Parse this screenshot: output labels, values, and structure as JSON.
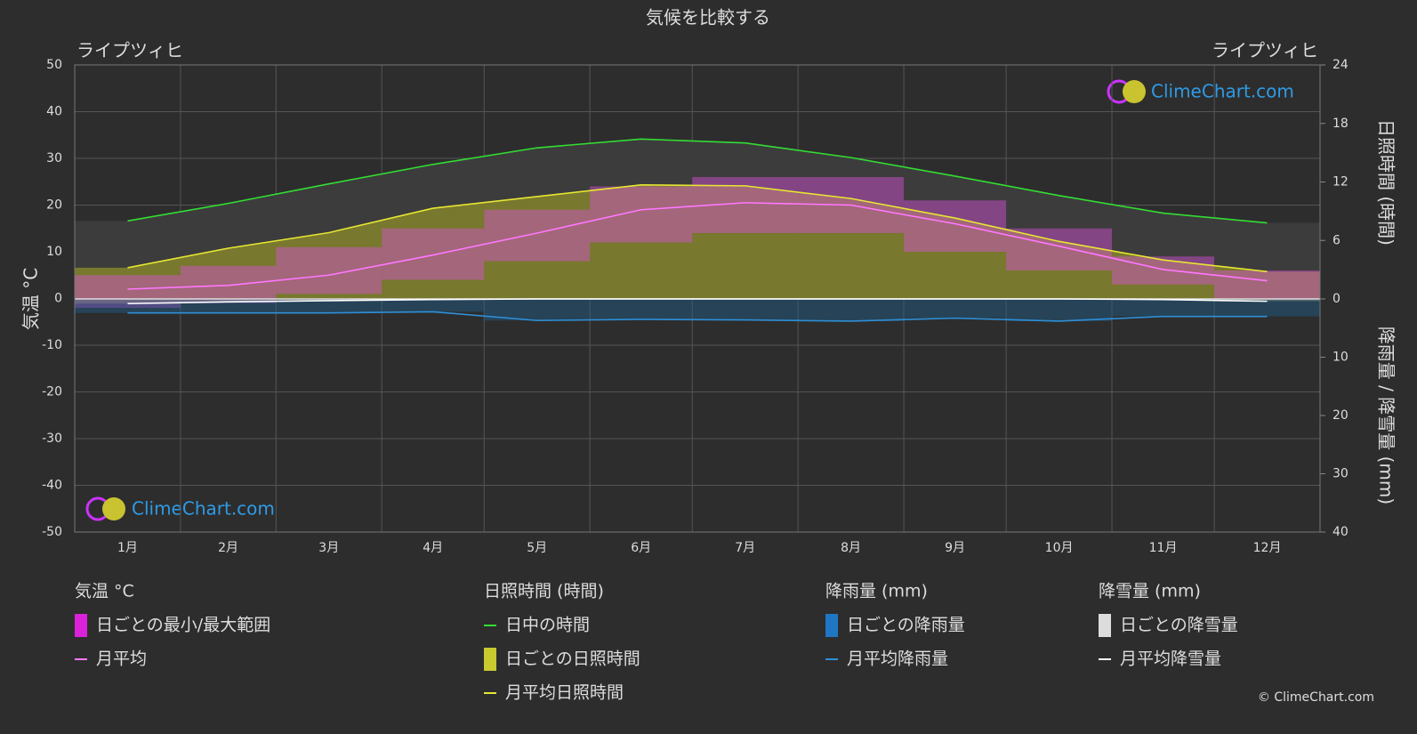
{
  "chart_data": {
    "type": "climate",
    "title": "気候を比較する",
    "location_left": "ライプツィヒ",
    "location_right": "ライプツィヒ",
    "y_label": "気温 °C",
    "y2_label": "日照時間 (時間)",
    "y3_label": "降雨量 / 降雪量 (mm)",
    "categories": [
      "1月",
      "2月",
      "3月",
      "4月",
      "5月",
      "6月",
      "7月",
      "8月",
      "9月",
      "10月",
      "11月",
      "12月"
    ],
    "ylim": [
      -50,
      50
    ],
    "yticks": [
      -50,
      -40,
      -30,
      -20,
      -10,
      0,
      10,
      20,
      30,
      40,
      50
    ],
    "y2lim": [
      0,
      24
    ],
    "y2ticks": [
      0,
      6,
      12,
      18,
      24
    ],
    "y3lim": [
      0,
      40
    ],
    "y3ticks": [
      10,
      20,
      30,
      40
    ],
    "grid": true,
    "temp_range": {
      "color": "#d94fd9",
      "min": [
        -2,
        -1,
        1,
        4,
        8,
        12,
        14,
        14,
        10,
        6,
        3,
        0
      ],
      "max": [
        5,
        7,
        11,
        15,
        19,
        24,
        26,
        26,
        21,
        15,
        9,
        6
      ]
    },
    "series": [
      {
        "name": "日中の時間",
        "color": "#33dd33",
        "axis": "y2",
        "values": [
          8.0,
          9.8,
          11.8,
          13.8,
          15.5,
          16.4,
          16.0,
          14.5,
          12.6,
          10.6,
          8.8,
          7.8
        ]
      },
      {
        "name": "月平均日照時間",
        "color": "#e6e633",
        "axis": "y2",
        "values": [
          3.2,
          5.2,
          6.8,
          9.3,
          10.5,
          11.7,
          11.6,
          10.3,
          8.3,
          5.9,
          4.0,
          2.8
        ]
      },
      {
        "name": "月平均",
        "color": "#ff77ff",
        "axis": "y",
        "values": [
          2.0,
          2.8,
          5.0,
          9.3,
          14.0,
          19.0,
          20.5,
          20.0,
          16.0,
          11.2,
          6.2,
          3.8
        ]
      },
      {
        "name": "月平均降雨量",
        "color": "#2e8fd6",
        "axis": "y3",
        "values": [
          2.4,
          2.4,
          2.4,
          2.2,
          3.7,
          3.5,
          3.6,
          3.8,
          3.3,
          3.8,
          3.0,
          3.0
        ]
      },
      {
        "name": "月平均降雪量",
        "color": "#ffffff",
        "axis": "y3",
        "values": [
          0.8,
          0.5,
          0.3,
          0.1,
          0,
          0,
          0,
          0,
          0,
          0,
          0.1,
          0.4
        ]
      }
    ],
    "legend_groups": [
      {
        "title": "気温 °C",
        "daily": "日ごとの最小/最大範囲"
      },
      {
        "title": "日照時間 (時間)",
        "daily": "日ごとの日照時間"
      },
      {
        "title": "降雨量 (mm)",
        "daily": "日ごとの降雨量"
      },
      {
        "title": "降雪量 (mm)",
        "daily": "日ごとの降雪量"
      }
    ],
    "watermark": "ClimeChart.com",
    "copyright": "© ClimeChart.com"
  }
}
